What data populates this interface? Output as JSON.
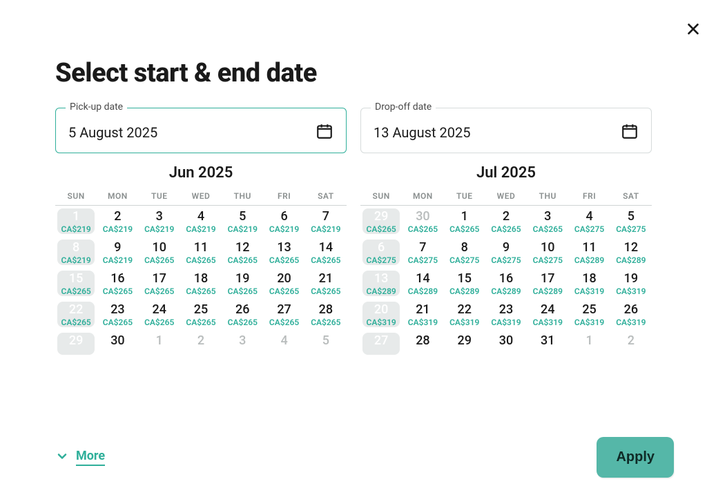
{
  "colors": {
    "accent": "#2faf9a",
    "accent_fill": "#55b7a8",
    "text": "#1a1a1a",
    "muted": "#8a8f8f",
    "faded": "#b8bcbc",
    "past_bg": "#e7eaea",
    "border": "#d6dbdb",
    "divider": "#cfd4d4",
    "background": "#ffffff"
  },
  "typography": {
    "title_fontsize": 38,
    "field_value_fontsize": 20,
    "month_title_fontsize": 22,
    "dow_fontsize": 12,
    "day_num_fontsize": 18,
    "price_fontsize": 12,
    "button_fontsize": 20
  },
  "title": "Select start & end date",
  "close_label": "Close",
  "pickup": {
    "legend": "Pick-up date",
    "value": "5 August 2025"
  },
  "dropoff": {
    "legend": "Drop-off date",
    "value": "13 August 2025"
  },
  "dow_labels": [
    "SUN",
    "MON",
    "TUE",
    "WED",
    "THU",
    "FRI",
    "SAT"
  ],
  "currency_prefix": "CA$",
  "calendars": [
    {
      "title": "Jun 2025",
      "weeks": [
        [
          {
            "n": 1,
            "p": 219,
            "past": true
          },
          {
            "n": 2,
            "p": 219
          },
          {
            "n": 3,
            "p": 219
          },
          {
            "n": 4,
            "p": 219
          },
          {
            "n": 5,
            "p": 219
          },
          {
            "n": 6,
            "p": 219
          },
          {
            "n": 7,
            "p": 219
          }
        ],
        [
          {
            "n": 8,
            "p": 219,
            "past": true
          },
          {
            "n": 9,
            "p": 219
          },
          {
            "n": 10,
            "p": 265
          },
          {
            "n": 11,
            "p": 265
          },
          {
            "n": 12,
            "p": 265
          },
          {
            "n": 13,
            "p": 265
          },
          {
            "n": 14,
            "p": 265
          }
        ],
        [
          {
            "n": 15,
            "p": 265,
            "past": true
          },
          {
            "n": 16,
            "p": 265
          },
          {
            "n": 17,
            "p": 265
          },
          {
            "n": 18,
            "p": 265
          },
          {
            "n": 19,
            "p": 265
          },
          {
            "n": 20,
            "p": 265
          },
          {
            "n": 21,
            "p": 265
          }
        ],
        [
          {
            "n": 22,
            "p": 265,
            "past": true
          },
          {
            "n": 23,
            "p": 265
          },
          {
            "n": 24,
            "p": 265
          },
          {
            "n": 25,
            "p": 265
          },
          {
            "n": 26,
            "p": 265
          },
          {
            "n": 27,
            "p": 265
          },
          {
            "n": 28,
            "p": 265
          }
        ],
        [
          {
            "n": 29,
            "past": true,
            "cut": true
          },
          {
            "n": 30,
            "cut": true,
            "faded": false
          },
          {
            "n": 1,
            "cut": true,
            "faded": true
          },
          {
            "n": 2,
            "cut": true,
            "faded": true
          },
          {
            "n": 3,
            "cut": true,
            "faded": true
          },
          {
            "n": 4,
            "cut": true,
            "faded": true
          },
          {
            "n": 5,
            "cut": true,
            "faded": true
          }
        ]
      ]
    },
    {
      "title": "Jul 2025",
      "weeks": [
        [
          {
            "n": 29,
            "p": 265,
            "past": true
          },
          {
            "n": 30,
            "p": 265,
            "faded": true
          },
          {
            "n": 1,
            "p": 265
          },
          {
            "n": 2,
            "p": 265
          },
          {
            "n": 3,
            "p": 265
          },
          {
            "n": 4,
            "p": 275
          },
          {
            "n": 5,
            "p": 275
          }
        ],
        [
          {
            "n": 6,
            "p": 275,
            "past": true
          },
          {
            "n": 7,
            "p": 275
          },
          {
            "n": 8,
            "p": 275
          },
          {
            "n": 9,
            "p": 275
          },
          {
            "n": 10,
            "p": 275
          },
          {
            "n": 11,
            "p": 289
          },
          {
            "n": 12,
            "p": 289
          }
        ],
        [
          {
            "n": 13,
            "p": 289,
            "past": true
          },
          {
            "n": 14,
            "p": 289
          },
          {
            "n": 15,
            "p": 289
          },
          {
            "n": 16,
            "p": 289
          },
          {
            "n": 17,
            "p": 289
          },
          {
            "n": 18,
            "p": 319
          },
          {
            "n": 19,
            "p": 319
          }
        ],
        [
          {
            "n": 20,
            "p": 319,
            "past": true
          },
          {
            "n": 21,
            "p": 319
          },
          {
            "n": 22,
            "p": 319
          },
          {
            "n": 23,
            "p": 319
          },
          {
            "n": 24,
            "p": 319
          },
          {
            "n": 25,
            "p": 319
          },
          {
            "n": 26,
            "p": 319
          }
        ],
        [
          {
            "n": 27,
            "past": true,
            "cut": true
          },
          {
            "n": 28,
            "cut": true
          },
          {
            "n": 29,
            "cut": true
          },
          {
            "n": 30,
            "cut": true
          },
          {
            "n": 31,
            "cut": true
          },
          {
            "n": 1,
            "cut": true,
            "faded": true
          },
          {
            "n": 2,
            "cut": true,
            "faded": true
          }
        ]
      ]
    }
  ],
  "more_label": "More",
  "apply_label": "Apply"
}
